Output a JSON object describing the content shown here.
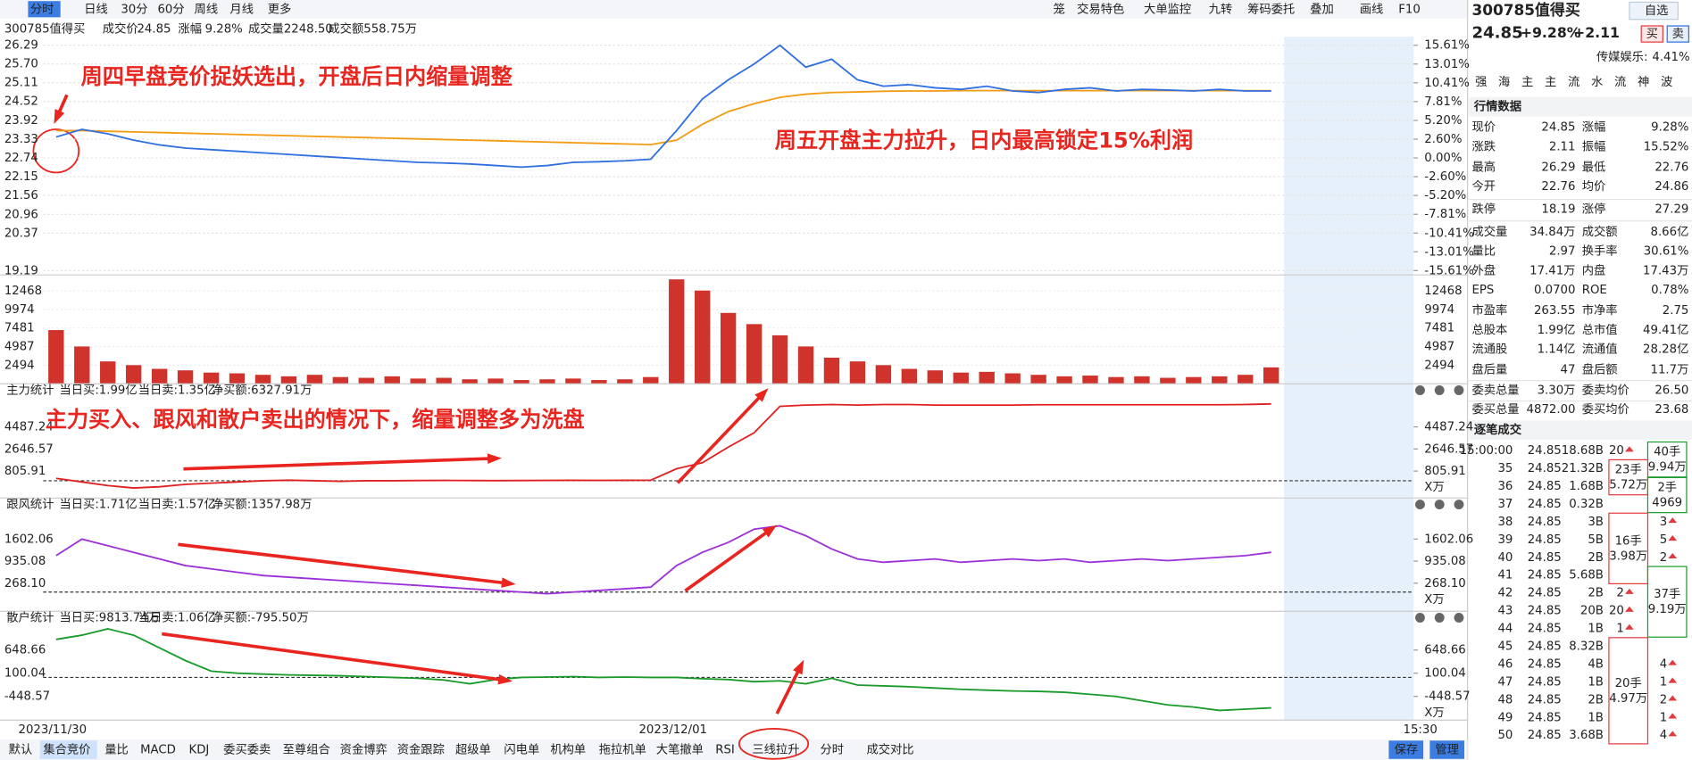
{
  "toolbar": {
    "periods": [
      "分时",
      "日线",
      "30分",
      "60分",
      "周线",
      "月线",
      "更多"
    ],
    "active": 0,
    "tools": [
      "笼",
      "交易特色",
      "大单监控",
      "九转",
      "筹码委托",
      "叠加",
      "画线",
      "F10"
    ]
  },
  "quote_bar": {
    "code": "300785值得买",
    "price_label": "成交价",
    "price": "24.85",
    "change_label": "涨幅",
    "change": "9.28%",
    "volume_label": "成交量",
    "volume": "2248.50",
    "amount_label": "成交额",
    "amount": "558.75万"
  },
  "price_chart": {
    "ylim": [
      19.19,
      26.29
    ],
    "yticks": [
      26.29,
      {
        "value": 25.7,
        "label": "25.70"
      },
      25.11,
      24.52,
      23.92,
      23.33,
      22.74,
      22.15,
      21.56,
      20.96,
      20.37,
      19.19
    ],
    "y2lim": [
      -15.61,
      15.61
    ],
    "y2ticks": [
      {
        "value": 15.61,
        "label": "15.61%"
      },
      {
        "value": 13.01,
        "label": "13.01%"
      },
      {
        "value": 10.41,
        "label": "10.41%"
      },
      {
        "value": 7.81,
        "label": "7.81%"
      },
      {
        "value": 5.2,
        "label": "5.20%"
      },
      {
        "value": 2.6,
        "label": "2.60%"
      },
      {
        "value": 0,
        "label": "0.00%"
      },
      {
        "value": -2.6,
        "label": "-2.60%"
      },
      {
        "value": -5.2,
        "label": "-5.20%"
      },
      {
        "value": -7.81,
        "label": "-7.81%"
      },
      {
        "value": -10.41,
        "label": "-10.41%"
      },
      {
        "value": -13.01,
        "label": "-13.01%"
      },
      {
        "value": -15.61,
        "label": "-15.61%"
      }
    ],
    "price": {
      "color": "#2f6fe0",
      "values": [
        23.4,
        23.64,
        23.5,
        23.3,
        23.15,
        23.05,
        23.0,
        22.95,
        22.9,
        22.85,
        22.8,
        22.75,
        22.7,
        22.65,
        22.6,
        22.58,
        22.55,
        22.5,
        22.45,
        22.5,
        22.6,
        22.62,
        22.65,
        22.7,
        23.6,
        24.6,
        25.2,
        25.7,
        26.29,
        25.6,
        25.85,
        25.2,
        25.0,
        25.05,
        24.95,
        24.9,
        25.0,
        24.85,
        24.8,
        24.9,
        24.95,
        24.85,
        24.9,
        24.88,
        24.85,
        24.9,
        24.85,
        24.85
      ]
    },
    "average": {
      "color": "#f39c12",
      "values": [
        23.6,
        23.6,
        23.58,
        23.56,
        23.54,
        23.52,
        23.5,
        23.48,
        23.46,
        23.44,
        23.42,
        23.4,
        23.38,
        23.36,
        23.34,
        23.32,
        23.3,
        23.28,
        23.26,
        23.24,
        23.22,
        23.2,
        23.18,
        23.16,
        23.3,
        23.8,
        24.2,
        24.45,
        24.65,
        24.75,
        24.8,
        24.82,
        24.84,
        24.85,
        24.85,
        24.86,
        24.86,
        24.86,
        24.86,
        24.86,
        24.86,
        24.86,
        24.86,
        24.86,
        24.86,
        24.86,
        24.86,
        24.86
      ]
    }
  },
  "volume_chart": {
    "ylim": [
      0,
      14600
    ],
    "yticks": [
      2494,
      4987,
      7481,
      9974,
      12468
    ],
    "color": "#d0332b",
    "values": [
      7200,
      5000,
      3000,
      2500,
      2000,
      1800,
      1500,
      1400,
      1200,
      1000,
      1200,
      900,
      800,
      1000,
      700,
      800,
      600,
      700,
      500,
      600,
      700,
      500,
      600,
      900,
      14000,
      12500,
      9500,
      8000,
      6500,
      5000,
      3500,
      3000,
      2500,
      2000,
      1800,
      1500,
      1600,
      1400,
      1200,
      1000,
      1100,
      900,
      1000,
      800,
      900,
      1000,
      1200,
      2200
    ]
  },
  "stat_panels": [
    {
      "title": "主力统计",
      "buy": "当日买:1.99亿",
      "sell": "当日卖:1.35亿",
      "net": "净买额:6327.91万",
      "unit": "X万",
      "color": "#e02020",
      "ylim": [
        -1080,
        6640
      ],
      "yticks": [
        4487.24,
        2646.57,
        805.91
      ],
      "values": [
        200,
        -100,
        -400,
        -600,
        -500,
        -300,
        -200,
        -100,
        0,
        50,
        0,
        -50,
        0,
        0,
        20,
        30,
        20,
        10,
        20,
        30,
        40,
        30,
        40,
        50,
        1000,
        1500,
        2800,
        4000,
        6200,
        6300,
        6350,
        6300,
        6350,
        6350,
        6300,
        6300,
        6300,
        6300,
        6330,
        6330,
        6330,
        6330,
        6330,
        6330,
        6330,
        6330,
        6350,
        6400
      ]
    },
    {
      "title": "跟风统计",
      "buy": "当日买:1.71亿",
      "sell": "当日卖:1.57亿",
      "net": "净买额:1357.98万",
      "unit": "X万",
      "color": "#9b30d9",
      "ylim": [
        -415,
        2383
      ],
      "yticks": [
        1602.06,
        935.08,
        {
          "value": 268.1,
          "label": "268.10"
        }
      ],
      "values": [
        1100,
        1600,
        1400,
        1200,
        1000,
        800,
        700,
        600,
        500,
        450,
        400,
        350,
        300,
        250,
        200,
        150,
        100,
        50,
        0,
        -50,
        0,
        50,
        100,
        150,
        800,
        1200,
        1500,
        1900,
        2000,
        1700,
        1300,
        1000,
        900,
        950,
        1000,
        900,
        950,
        1000,
        950,
        1000,
        900,
        950,
        1000,
        950,
        1000,
        1050,
        1100,
        1200
      ]
    },
    {
      "title": "散户统计",
      "buy": "当日买:9813.74万",
      "sell": "当日卖:1.06亿",
      "net": "净买额:-795.50万",
      "unit": "X万",
      "color": "#1a9a2a",
      "ylim": [
        -984,
        1235
      ],
      "yticks": [
        648.66,
        100.04,
        -448.57
      ],
      "values": [
        900,
        1000,
        1150,
        1000,
        700,
        400,
        150,
        100,
        80,
        60,
        50,
        40,
        20,
        0,
        -20,
        -60,
        -150,
        -50,
        0,
        10,
        20,
        0,
        10,
        0,
        0,
        -30,
        -50,
        -100,
        -80,
        -150,
        -20,
        -180,
        -200,
        -220,
        -250,
        -280,
        -300,
        -320,
        -330,
        -350,
        -400,
        -450,
        -550,
        -650,
        -700,
        -780,
        -750,
        -720
      ]
    }
  ],
  "annotations": [
    "周四早盘竞价捉妖选出，开盘后日内缩量调整",
    "周五开盘主力拉升，日内最高锁定15%利润",
    "主力买入、跟风和散户卖出的情况下，缩量调整多为洗盘"
  ],
  "x_labels": [
    "2023/11/30",
    "2023/12/01",
    "15:30"
  ],
  "bottom_tabs": {
    "items": [
      "默认",
      "集合竞价",
      "量比",
      "MACD",
      "KDJ",
      "委买委卖",
      "至尊组合",
      "资金博弈",
      "资金跟踪",
      "超级单",
      "闪电单",
      "机构单",
      "拖拉机单",
      "大笔撤单",
      "RSI",
      "三线拉升",
      "分时",
      "成交对比"
    ],
    "active": 1,
    "buttons": [
      "保存",
      "管理"
    ]
  },
  "side_panel": {
    "code": "300785值得买",
    "watch": "自选",
    "price": "24.85",
    "change_pct": "+9.28%",
    "change": "+2.11",
    "buy": "买",
    "sell": "卖",
    "sector": "传媒娱乐:",
    "sector_change": "4.41%",
    "tags": [
      "强",
      "海",
      "主",
      "主",
      "流",
      "水",
      "流",
      "神",
      "波"
    ],
    "quotes_title": "行情数据",
    "quotes": [
      [
        [
          "现价",
          "24.85",
          "up"
        ],
        [
          "涨幅",
          "9.28%",
          "up"
        ]
      ],
      [
        [
          "涨跌",
          "2.11",
          "up"
        ],
        [
          "振幅",
          "15.52%",
          "flat"
        ]
      ],
      [
        [
          "最高",
          "26.29",
          "up"
        ],
        [
          "最低",
          "22.76",
          "down"
        ]
      ],
      [
        [
          "今开",
          "22.76",
          "down"
        ],
        [
          "均价",
          "24.86",
          "up"
        ]
      ],
      [
        [
          "跌停",
          "18.19",
          "down"
        ],
        [
          "涨停",
          "27.29",
          "up"
        ]
      ],
      [
        [
          "成交量",
          "34.84万",
          "flat"
        ],
        [
          "成交额",
          "8.66亿",
          "flat"
        ]
      ],
      [
        [
          "量比",
          "2.97",
          "flat"
        ],
        [
          "换手率",
          "30.61%",
          "flat"
        ]
      ],
      [
        [
          "外盘",
          "17.41万",
          "up"
        ],
        [
          "内盘",
          "17.43万",
          "down"
        ]
      ],
      [
        [
          "EPS",
          "0.0700",
          "flat"
        ],
        [
          "ROE",
          "0.78%",
          "flat"
        ]
      ],
      [
        [
          "市盈率",
          "263.55",
          "flat"
        ],
        [
          "市净率",
          "2.75",
          "flat"
        ]
      ],
      [
        [
          "总股本",
          "1.99亿",
          "flat"
        ],
        [
          "总市值",
          "49.41亿",
          "flat"
        ]
      ],
      [
        [
          "流通股",
          "1.14亿",
          "flat"
        ],
        [
          "流通值",
          "28.28亿",
          "flat"
        ]
      ],
      [
        [
          "盘后量",
          "47",
          "flat"
        ],
        [
          "盘后额",
          "11.7万",
          "flat"
        ]
      ],
      [
        [
          "委卖总量",
          "3.30万",
          "flat"
        ],
        [
          "委卖均价",
          "26.50",
          "up"
        ]
      ],
      [
        [
          "委买总量",
          "4872.00",
          "flat"
        ],
        [
          "委买均价",
          "23.68",
          "up"
        ]
      ]
    ],
    "trades_title": "逐笔成交",
    "trades": [
      [
        "15:00:00",
        "24.85",
        "18.68B",
        "20",
        null
      ],
      [
        "35",
        "24.85",
        "21.32B",
        null,
        null
      ],
      [
        "36",
        "24.85",
        "1.68B",
        null,
        null
      ],
      [
        "37",
        "24.85",
        "0.32B",
        null,
        null
      ],
      [
        "38",
        "24.85",
        "3B",
        null,
        "3"
      ],
      [
        "39",
        "24.85",
        "5B",
        null,
        "5"
      ],
      [
        "40",
        "24.85",
        "2B",
        null,
        "2"
      ],
      [
        "41",
        "24.85",
        "5.68B",
        null,
        null
      ],
      [
        "42",
        "24.85",
        "2B",
        "2",
        null
      ],
      [
        "43",
        "24.85",
        "20B",
        "20",
        null
      ],
      [
        "44",
        "24.85",
        "1B",
        "1",
        null
      ],
      [
        "45",
        "24.85",
        "8.32B",
        null,
        null
      ],
      [
        "46",
        "24.85",
        "4B",
        null,
        "4"
      ],
      [
        "47",
        "24.85",
        "1B",
        null,
        "1"
      ],
      [
        "48",
        "24.85",
        "2B",
        null,
        "2"
      ],
      [
        "49",
        "24.85",
        "1B",
        null,
        "1"
      ],
      [
        "50",
        "24.85",
        "3.68B",
        null,
        "4"
      ]
    ],
    "trade_groups": [
      [
        "40手",
        "9.94万"
      ],
      [
        "23手",
        "5.72万"
      ],
      [
        "2手",
        "4969"
      ],
      [
        "16手",
        "3.98万"
      ],
      [
        "37手",
        "9.19万"
      ],
      [
        "20手",
        "4.97万"
      ]
    ]
  }
}
